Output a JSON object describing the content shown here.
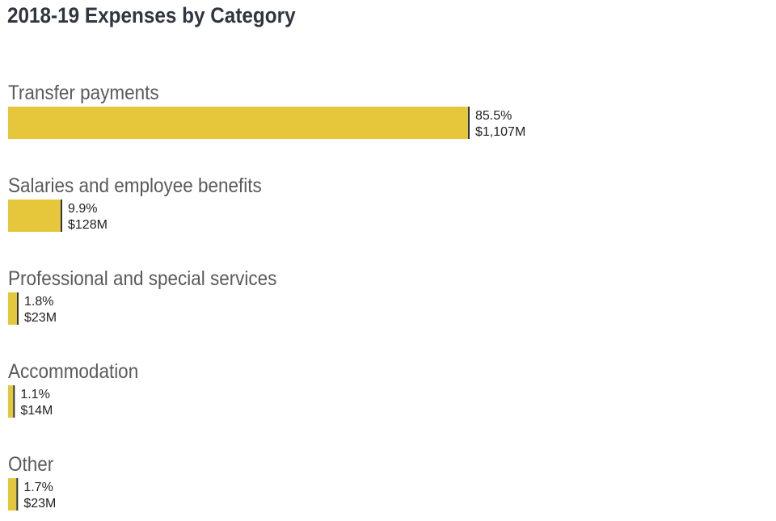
{
  "chart_data": {
    "type": "bar",
    "orientation": "horizontal",
    "title": "2018-19 Expenses by Category",
    "categories": [
      "Transfer payments",
      "Salaries and employee benefits",
      "Professional and special services",
      "Accommodation",
      "Other"
    ],
    "values": [
      85.5,
      9.9,
      1.8,
      1.1,
      1.7
    ],
    "percent_labels": [
      "85.5%",
      "9.9%",
      "1.8%",
      "1.1%",
      "1.7%"
    ],
    "amount_labels": [
      "$1,107M",
      "$128M",
      "$23M",
      "$14M",
      "$23M"
    ],
    "amounts_millions": [
      1107,
      128,
      23,
      14,
      23
    ],
    "xlabel": "",
    "ylabel": "",
    "grid": false,
    "legend": "none",
    "colors": {
      "bar": "#e6c63a",
      "bar_end": "#2f3640",
      "title": "#2f3640",
      "category_text": "#5a5a5a"
    }
  }
}
